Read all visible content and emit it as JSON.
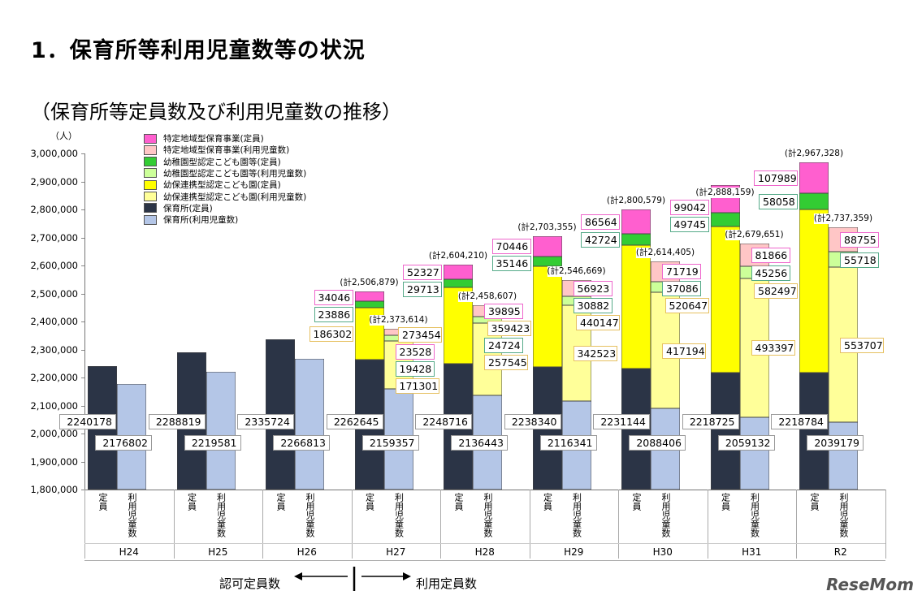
{
  "title": "1．保育所等利用児童数等の状況",
  "subtitle": "（保育所等定員数及び利用児童数の推移）",
  "logo": "ReseMom",
  "bottom": {
    "left": "認可定員数",
    "right": "利用定員数"
  },
  "chart_data": {
    "type": "bar",
    "stacked": true,
    "ylabel": "（人）",
    "ylim": [
      1800000,
      3000000
    ],
    "yticks": [
      "1,800,000",
      "1,900,000",
      "2,000,000",
      "2,100,000",
      "2,200,000",
      "2,300,000",
      "2,400,000",
      "2,500,000",
      "2,600,000",
      "2,700,000",
      "2,800,000",
      "2,900,000",
      "3,000,000"
    ],
    "categories": [
      "H24",
      "H25",
      "H26",
      "H27",
      "H28",
      "H29",
      "H30",
      "H31",
      "R2"
    ],
    "bar_labels": [
      "定員",
      "利用児童数"
    ],
    "legend": [
      {
        "name": "特定地域型保育事業(定員)",
        "color": "#ff5fcf"
      },
      {
        "name": "特定地域型保育事業(利用児童数)",
        "color": "#ffc6c6"
      },
      {
        "name": "幼稚園型認定こども園等(定員)",
        "color": "#33cc33"
      },
      {
        "name": "幼稚園型認定こども園等(利用児童数)",
        "color": "#ccff99"
      },
      {
        "name": "幼保連携型認定こども園(定員)",
        "color": "#ffff00"
      },
      {
        "name": "幼保連携型認定こども園(利用児童数)",
        "color": "#ffff99"
      },
      {
        "name": "保育所(定員)",
        "color": "#2b3446"
      },
      {
        "name": "保育所(利用児童数)",
        "color": "#b4c6e7"
      }
    ],
    "capacity": {
      "保育所": [
        2240178,
        2288819,
        2335724,
        2262645,
        2248716,
        2238340,
        2231144,
        2218725,
        2218784
      ],
      "幼保連携型認定こども園": [
        null,
        null,
        null,
        186302,
        273454,
        359423,
        440147,
        520647,
        582497
      ],
      "幼稚園型認定こども園等": [
        null,
        null,
        null,
        23886,
        29713,
        35146,
        42724,
        49745,
        58058
      ],
      "特定地域型保育事業": [
        null,
        null,
        null,
        34046,
        52327,
        70446,
        86564,
        99042,
        107989
      ],
      "total": [
        null,
        null,
        null,
        "(計2,506,879)",
        "(計2,604,210)",
        "(計2,703,355)",
        "(計2,800,579)",
        "(計2,888,159)",
        "(計2,967,328)"
      ]
    },
    "usage": {
      "保育所": [
        2176802,
        2219581,
        2266813,
        2159357,
        2136443,
        2116341,
        2088406,
        2059132,
        2039179
      ],
      "幼保連携型認定こども園": [
        null,
        null,
        null,
        171301,
        257545,
        342523,
        417194,
        493397,
        553707
      ],
      "幼稚園型認定こども園等": [
        null,
        null,
        null,
        19428,
        24724,
        30882,
        37086,
        45256,
        55718
      ],
      "特定地域型保育事業": [
        null,
        null,
        null,
        23528,
        39895,
        56923,
        71719,
        81866,
        88755
      ],
      "total": [
        null,
        null,
        null,
        "(計2,373,614)",
        "(計2,458,607)",
        "(計2,546,669)",
        "(計2,614,405)",
        "(計2,679,651)",
        "(計2,737,359)"
      ]
    }
  }
}
